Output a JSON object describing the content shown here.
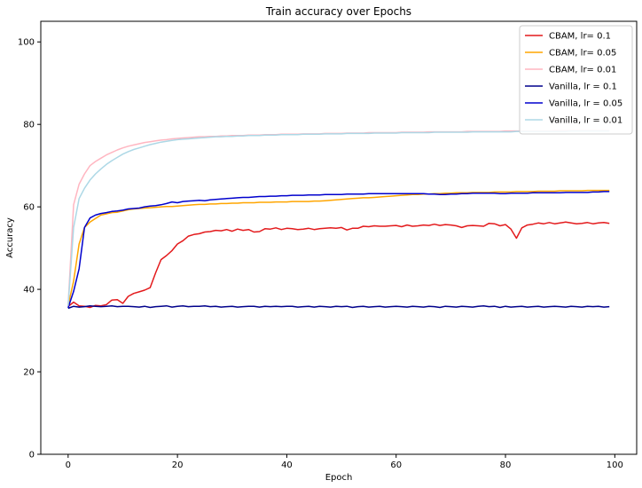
{
  "chart_data": {
    "type": "line",
    "title": "Train accuracy over Epochs",
    "xlabel": "Epoch",
    "ylabel": "Accuracy",
    "xlim": [
      -5,
      104
    ],
    "ylim": [
      0,
      105
    ],
    "xticks": [
      0,
      20,
      40,
      60,
      80,
      100
    ],
    "yticks": [
      0,
      20,
      40,
      60,
      80,
      100
    ],
    "grid": false,
    "legend_position": "top-right",
    "x": [
      0,
      1,
      2,
      3,
      4,
      5,
      6,
      7,
      8,
      9,
      10,
      11,
      12,
      13,
      14,
      15,
      16,
      17,
      18,
      19,
      20,
      21,
      22,
      23,
      24,
      25,
      26,
      27,
      28,
      29,
      30,
      31,
      32,
      33,
      34,
      35,
      36,
      37,
      38,
      39,
      40,
      41,
      42,
      43,
      44,
      45,
      46,
      47,
      48,
      49,
      50,
      51,
      52,
      53,
      54,
      55,
      56,
      57,
      58,
      59,
      60,
      61,
      62,
      63,
      64,
      65,
      66,
      67,
      68,
      69,
      70,
      71,
      72,
      73,
      74,
      75,
      76,
      77,
      78,
      79,
      80,
      81,
      82,
      83,
      84,
      85,
      86,
      87,
      88,
      89,
      90,
      91,
      92,
      93,
      94,
      95,
      96,
      97,
      98,
      99
    ],
    "series": [
      {
        "name": "CBAM, lr= 0.1",
        "color": "#e31a1c",
        "values": [
          35.8,
          36.9,
          36.0,
          35.9,
          35.6,
          36.1,
          36.0,
          36.3,
          37.4,
          37.5,
          36.6,
          38.3,
          39.0,
          39.4,
          39.8,
          40.4,
          44.0,
          47.2,
          48.2,
          49.4,
          51.0,
          51.8,
          52.9,
          53.3,
          53.5,
          53.9,
          54.0,
          54.3,
          54.2,
          54.5,
          54.1,
          54.6,
          54.3,
          54.5,
          53.9,
          54.0,
          54.7,
          54.6,
          54.9,
          54.5,
          54.8,
          54.7,
          54.5,
          54.6,
          54.8,
          54.5,
          54.7,
          54.8,
          54.9,
          54.8,
          55.0,
          54.4,
          54.8,
          54.8,
          55.3,
          55.2,
          55.4,
          55.3,
          55.3,
          55.4,
          55.5,
          55.2,
          55.6,
          55.3,
          55.4,
          55.6,
          55.5,
          55.8,
          55.5,
          55.7,
          55.6,
          55.4,
          55.0,
          55.4,
          55.5,
          55.4,
          55.3,
          56.0,
          55.9,
          55.4,
          55.7,
          54.6,
          52.4,
          54.9,
          55.6,
          55.8,
          56.1,
          55.9,
          56.2,
          55.9,
          56.1,
          56.3,
          56.1,
          55.9,
          56.0,
          56.2,
          55.9,
          56.1,
          56.2,
          56.0
        ]
      },
      {
        "name": "CBAM, lr= 0.05",
        "color": "#ffa500",
        "values": [
          36.0,
          42.0,
          51.0,
          55.0,
          56.3,
          57.2,
          58.0,
          58.3,
          58.6,
          58.7,
          59.0,
          59.3,
          59.5,
          59.6,
          59.7,
          59.8,
          59.9,
          60.0,
          60.1,
          60.1,
          60.2,
          60.3,
          60.4,
          60.5,
          60.6,
          60.6,
          60.7,
          60.7,
          60.8,
          60.8,
          60.9,
          60.9,
          61.0,
          61.0,
          61.0,
          61.1,
          61.1,
          61.1,
          61.2,
          61.2,
          61.2,
          61.3,
          61.3,
          61.3,
          61.3,
          61.4,
          61.4,
          61.5,
          61.6,
          61.7,
          61.8,
          61.9,
          62.0,
          62.1,
          62.2,
          62.2,
          62.3,
          62.4,
          62.5,
          62.6,
          62.7,
          62.8,
          62.9,
          63.0,
          63.0,
          63.1,
          63.1,
          63.2,
          63.2,
          63.3,
          63.3,
          63.4,
          63.4,
          63.4,
          63.5,
          63.5,
          63.5,
          63.5,
          63.6,
          63.6,
          63.6,
          63.6,
          63.7,
          63.7,
          63.7,
          63.7,
          63.8,
          63.8,
          63.8,
          63.8,
          63.9,
          63.9,
          63.9,
          63.9,
          63.9,
          64.0,
          64.0,
          64.0,
          64.0,
          64.0
        ]
      },
      {
        "name": "CBAM, lr= 0.01",
        "color": "#ffb6c1",
        "values": [
          36.0,
          60.5,
          65.5,
          68.0,
          70.0,
          71.0,
          71.8,
          72.6,
          73.2,
          73.8,
          74.3,
          74.7,
          75.0,
          75.3,
          75.6,
          75.8,
          76.0,
          76.2,
          76.3,
          76.5,
          76.6,
          76.7,
          76.8,
          76.9,
          77.0,
          77.0,
          77.1,
          77.1,
          77.2,
          77.2,
          77.3,
          77.3,
          77.3,
          77.4,
          77.4,
          77.4,
          77.5,
          77.5,
          77.5,
          77.6,
          77.6,
          77.6,
          77.6,
          77.7,
          77.7,
          77.7,
          77.7,
          77.8,
          77.8,
          77.8,
          77.8,
          77.9,
          77.9,
          77.9,
          77.9,
          78.0,
          78.0,
          78.0,
          78.0,
          78.0,
          78.0,
          78.1,
          78.1,
          78.1,
          78.1,
          78.1,
          78.2,
          78.2,
          78.2,
          78.2,
          78.2,
          78.2,
          78.2,
          78.3,
          78.3,
          78.3,
          78.3,
          78.3,
          78.3,
          78.3,
          78.4,
          78.4,
          78.4,
          78.4,
          78.4,
          78.4,
          78.4,
          78.4,
          78.4,
          78.5,
          78.5,
          78.5,
          78.5,
          78.5,
          78.5,
          78.5,
          78.5,
          78.5,
          78.5,
          78.5
        ]
      },
      {
        "name": "Vanilla, lr = 0.1",
        "color": "#00008b",
        "values": [
          35.4,
          35.9,
          35.7,
          35.8,
          36.0,
          35.9,
          35.8,
          35.9,
          36.0,
          35.8,
          35.9,
          35.9,
          35.8,
          35.7,
          35.9,
          35.6,
          35.8,
          35.9,
          36.0,
          35.7,
          35.9,
          36.0,
          35.8,
          35.9,
          35.9,
          36.0,
          35.8,
          35.9,
          35.7,
          35.8,
          35.9,
          35.7,
          35.8,
          35.9,
          35.9,
          35.7,
          35.9,
          35.8,
          35.9,
          35.8,
          35.9,
          35.9,
          35.7,
          35.8,
          35.9,
          35.7,
          35.9,
          35.8,
          35.7,
          35.9,
          35.8,
          35.9,
          35.6,
          35.8,
          35.9,
          35.7,
          35.8,
          35.9,
          35.7,
          35.8,
          35.9,
          35.8,
          35.7,
          35.9,
          35.8,
          35.7,
          35.9,
          35.8,
          35.6,
          35.9,
          35.8,
          35.7,
          35.9,
          35.8,
          35.7,
          35.9,
          36.0,
          35.8,
          35.9,
          35.6,
          35.9,
          35.7,
          35.8,
          35.9,
          35.7,
          35.8,
          35.9,
          35.7,
          35.8,
          35.9,
          35.8,
          35.7,
          35.9,
          35.8,
          35.7,
          35.9,
          35.8,
          35.9,
          35.7,
          35.8
        ]
      },
      {
        "name": "Vanilla, lr = 0.05",
        "color": "#0000cd",
        "values": [
          35.5,
          39.5,
          45.0,
          55.0,
          57.3,
          58.0,
          58.4,
          58.6,
          58.9,
          59.0,
          59.2,
          59.5,
          59.6,
          59.7,
          60.0,
          60.2,
          60.3,
          60.5,
          60.8,
          61.2,
          61.0,
          61.3,
          61.4,
          61.5,
          61.6,
          61.5,
          61.7,
          61.8,
          61.9,
          62.0,
          62.1,
          62.2,
          62.3,
          62.3,
          62.4,
          62.5,
          62.5,
          62.6,
          62.6,
          62.7,
          62.7,
          62.8,
          62.8,
          62.8,
          62.9,
          62.9,
          62.9,
          63.0,
          63.0,
          63.0,
          63.0,
          63.1,
          63.1,
          63.1,
          63.1,
          63.2,
          63.2,
          63.2,
          63.2,
          63.2,
          63.2,
          63.2,
          63.2,
          63.2,
          63.2,
          63.2,
          63.1,
          63.1,
          63.0,
          63.0,
          63.1,
          63.1,
          63.2,
          63.2,
          63.3,
          63.3,
          63.3,
          63.3,
          63.3,
          63.2,
          63.2,
          63.3,
          63.3,
          63.3,
          63.3,
          63.4,
          63.4,
          63.4,
          63.4,
          63.4,
          63.4,
          63.5,
          63.5,
          63.5,
          63.5,
          63.5,
          63.6,
          63.6,
          63.7,
          63.7
        ]
      },
      {
        "name": "Vanilla, lr = 0.01",
        "color": "#add8e6",
        "values": [
          36.0,
          55.0,
          62.0,
          64.5,
          66.5,
          68.0,
          69.2,
          70.3,
          71.2,
          72.0,
          72.8,
          73.4,
          73.9,
          74.3,
          74.7,
          75.1,
          75.4,
          75.7,
          75.9,
          76.1,
          76.3,
          76.4,
          76.5,
          76.6,
          76.7,
          76.8,
          76.9,
          77.0,
          77.0,
          77.1,
          77.1,
          77.2,
          77.2,
          77.3,
          77.3,
          77.3,
          77.4,
          77.4,
          77.4,
          77.5,
          77.5,
          77.5,
          77.5,
          77.6,
          77.6,
          77.6,
          77.6,
          77.7,
          77.7,
          77.7,
          77.7,
          77.8,
          77.8,
          77.8,
          77.8,
          77.8,
          77.9,
          77.9,
          77.9,
          77.9,
          77.9,
          78.0,
          78.0,
          78.0,
          78.0,
          78.0,
          78.0,
          78.1,
          78.1,
          78.1,
          78.1,
          78.1,
          78.1,
          78.1,
          78.2,
          78.2,
          78.2,
          78.2,
          78.2,
          78.2,
          78.2,
          78.2,
          78.3,
          78.3,
          78.3,
          78.3,
          78.3,
          78.3,
          78.3,
          78.3,
          78.3,
          78.3,
          78.4,
          78.4,
          78.4,
          78.4,
          78.4,
          78.4,
          78.4,
          78.4
        ]
      }
    ]
  }
}
